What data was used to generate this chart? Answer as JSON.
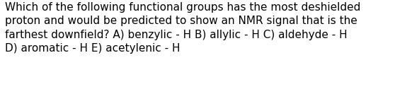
{
  "line1": "Which of the following functional groups has the most deshielded",
  "line2": "proton and would be predicted to show an NMR signal that is the",
  "line3": "farthest downfield? A) benzylic - H B) allylic - H C) aldehyde - H",
  "line4": "D) aromatic - H E) acetylenic - H",
  "background_color": "#ffffff",
  "text_color": "#000000",
  "font_size": 11.0,
  "fig_width": 5.58,
  "fig_height": 1.26,
  "dpi": 100
}
